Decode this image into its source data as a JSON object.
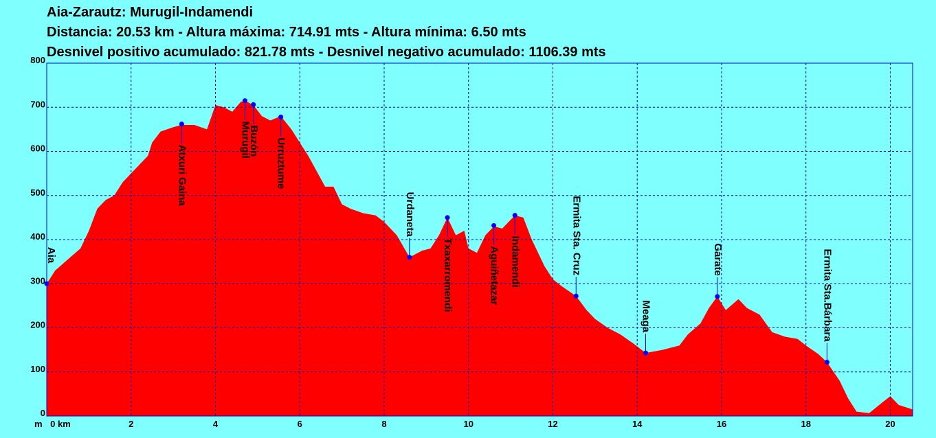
{
  "chart_data": {
    "type": "area",
    "title": "Aia-Zarautz: Murugil-Indamendi",
    "subtitle": "Distancia: 20.53 km - Altura máxima: 714.91 mts - Altura mínima: 6.50 mts",
    "subtitle2": "Desnivel positivo acumulado: 821.78 mts - Desnivel negativo acumulado: 1106.39 mts",
    "y_label": "m",
    "color": "#ff0000",
    "grid": true,
    "xlim": [
      0,
      20.53
    ],
    "ylim": [
      0,
      800
    ],
    "xticks": [
      {
        "value": 0,
        "label": "0 km"
      },
      2,
      4,
      6,
      8,
      10,
      12,
      14,
      16,
      18,
      20
    ],
    "yticks": [
      0,
      100,
      200,
      300,
      400,
      500,
      600,
      700,
      800
    ],
    "x": [
      0,
      0.2,
      0.5,
      0.8,
      1.0,
      1.2,
      1.4,
      1.6,
      1.8,
      2.0,
      2.2,
      2.4,
      2.5,
      2.7,
      3.0,
      3.2,
      3.5,
      3.8,
      4.0,
      4.2,
      4.4,
      4.6,
      4.7,
      4.9,
      5.1,
      5.3,
      5.55,
      5.8,
      6.0,
      6.2,
      6.4,
      6.6,
      6.8,
      7.0,
      7.2,
      7.5,
      7.8,
      8.0,
      8.3,
      8.6,
      8.9,
      9.1,
      9.3,
      9.5,
      9.7,
      9.9,
      10.0,
      10.2,
      10.4,
      10.6,
      10.8,
      11.1,
      11.3,
      11.5,
      11.8,
      12.0,
      12.2,
      12.55,
      12.8,
      13.0,
      13.3,
      13.6,
      13.9,
      14.2,
      14.6,
      15.0,
      15.2,
      15.5,
      15.7,
      15.9,
      16.1,
      16.4,
      16.6,
      16.9,
      17.2,
      17.5,
      17.8,
      18.0,
      18.3,
      18.5,
      18.8,
      19.0,
      19.2,
      19.5,
      19.8,
      20.0,
      20.2,
      20.53
    ],
    "values": [
      300,
      330,
      355,
      380,
      420,
      470,
      490,
      500,
      530,
      550,
      570,
      590,
      620,
      645,
      655,
      660,
      660,
      650,
      705,
      700,
      690,
      712,
      714.91,
      705,
      680,
      670,
      680,
      650,
      620,
      590,
      555,
      520,
      520,
      480,
      470,
      460,
      455,
      440,
      410,
      360,
      375,
      380,
      410,
      450,
      410,
      420,
      380,
      370,
      410,
      430,
      425,
      455,
      450,
      400,
      340,
      310,
      295,
      272,
      240,
      220,
      200,
      185,
      165,
      143,
      150,
      160,
      185,
      210,
      245,
      271,
      240,
      265,
      245,
      230,
      190,
      180,
      175,
      160,
      140,
      122,
      80,
      40,
      10,
      6.5,
      30,
      45,
      25,
      15
    ],
    "waypoints": [
      {
        "name": "Aia",
        "x": 0,
        "value": 300,
        "label_position": "above"
      },
      {
        "name": "Atxuri Gaina",
        "x": 3.2,
        "value": 662,
        "label_position": "below"
      },
      {
        "name": "Murugil",
        "x": 4.7,
        "value": 714.91,
        "label_position": "below"
      },
      {
        "name": "Buzón",
        "x": 4.9,
        "value": 706,
        "label_position": "below"
      },
      {
        "name": "Urruztume",
        "x": 5.55,
        "value": 678,
        "label_position": "below"
      },
      {
        "name": "Urdaneta",
        "x": 8.6,
        "value": 360,
        "label_position": "above"
      },
      {
        "name": "Txaxarromendi",
        "x": 9.5,
        "value": 450,
        "label_position": "below"
      },
      {
        "name": "Aguiñetazar",
        "x": 10.6,
        "value": 432,
        "label_position": "below"
      },
      {
        "name": "Indamendi",
        "x": 11.1,
        "value": 455,
        "label_position": "below"
      },
      {
        "name": "Ermita Sta. Cruz",
        "x": 12.55,
        "value": 272,
        "label_position": "above"
      },
      {
        "name": "Meaga",
        "x": 14.2,
        "value": 143,
        "label_position": "above"
      },
      {
        "name": "Gárate",
        "x": 15.9,
        "value": 271,
        "label_position": "above"
      },
      {
        "name": "Ermita Sta.Bárbara",
        "x": 18.5,
        "value": 122,
        "label_position": "above"
      }
    ]
  }
}
